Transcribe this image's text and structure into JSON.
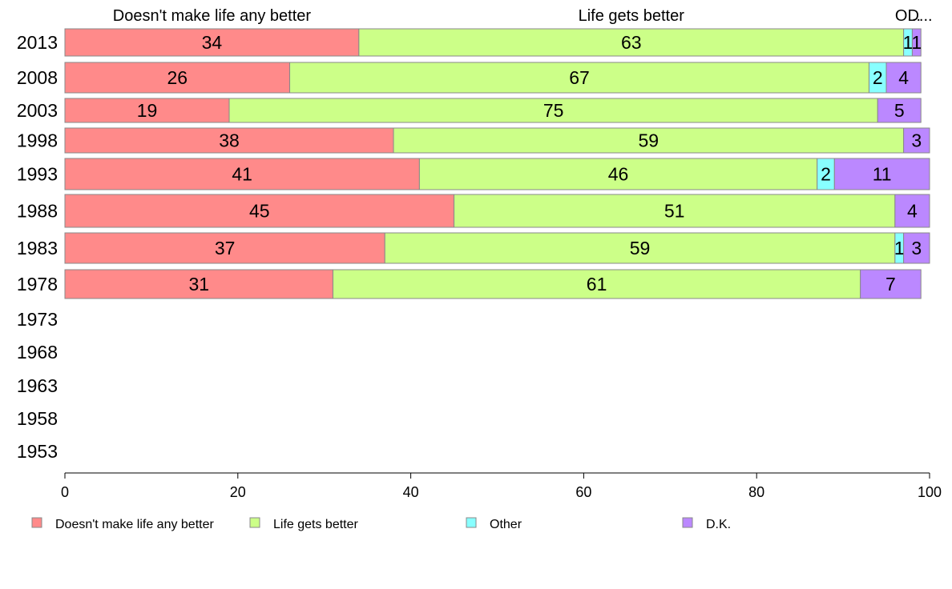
{
  "chart_data": {
    "type": "bar",
    "orientation": "horizontal",
    "stacked": true,
    "series": [
      {
        "name": "Doesn't make life any better",
        "color": "#FF8A8A"
      },
      {
        "name": "Life gets better",
        "color": "#CCFF88"
      },
      {
        "name": "Other",
        "color": "#88FFFF"
      },
      {
        "name": "D.K.",
        "color": "#BB88FF"
      }
    ],
    "column_headers": [
      "Doesn't make life any better",
      "Life gets better",
      "O...",
      "D..."
    ],
    "rows": [
      {
        "year": "2013",
        "values": [
          34,
          63,
          1,
          1
        ]
      },
      {
        "year": "2008",
        "values": [
          26,
          67,
          2,
          4
        ]
      },
      {
        "year": "2003",
        "values": [
          19,
          75,
          0,
          5
        ]
      },
      {
        "year": "1998",
        "values": [
          38,
          59,
          0,
          3
        ]
      },
      {
        "year": "1993",
        "values": [
          41,
          46,
          2,
          11
        ]
      },
      {
        "year": "1988",
        "values": [
          45,
          51,
          0,
          4
        ]
      },
      {
        "year": "1983",
        "values": [
          37,
          59,
          1,
          3
        ]
      },
      {
        "year": "1978",
        "values": [
          31,
          61,
          0,
          7
        ]
      },
      {
        "year": "1973",
        "values": []
      },
      {
        "year": "1968",
        "values": []
      },
      {
        "year": "1963",
        "values": []
      },
      {
        "year": "1958",
        "values": []
      },
      {
        "year": "1953",
        "values": []
      }
    ],
    "xlim": [
      0,
      100
    ],
    "xticks": [
      "0",
      "20",
      "40",
      "60",
      "80",
      "100"
    ],
    "legend_position": "bottom",
    "grid": false
  }
}
